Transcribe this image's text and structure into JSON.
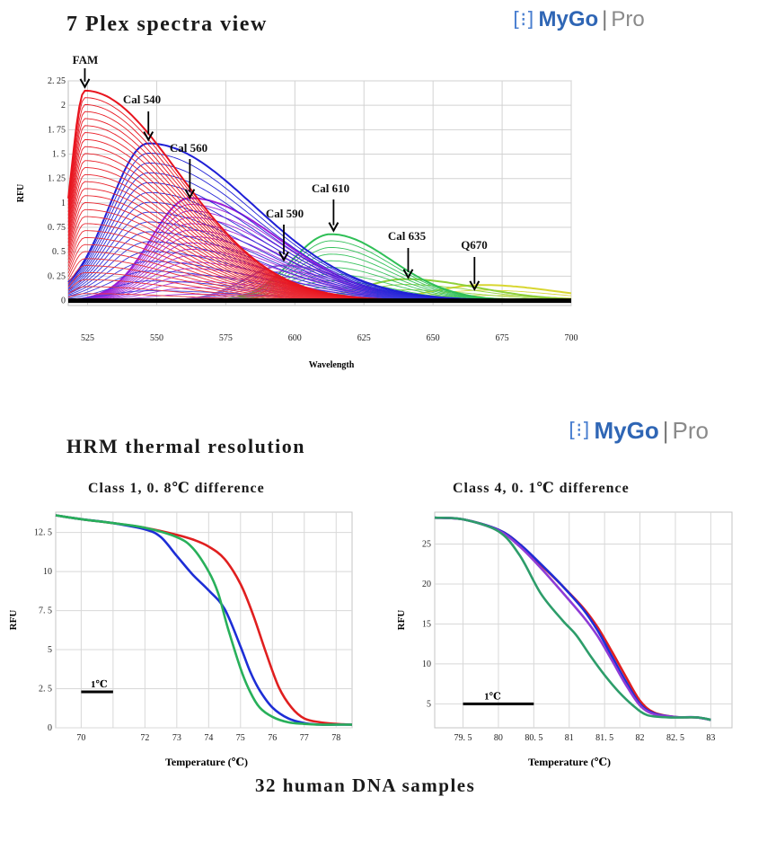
{
  "header": {
    "title": "7 Plex spectra view",
    "logo": {
      "brand": "MyGo",
      "bar": "|",
      "suffix": "Pro"
    }
  },
  "section2": {
    "title": "HRM thermal resolution",
    "logo": {
      "brand": "MyGo",
      "bar": "|",
      "suffix": "Pro"
    },
    "caption": "32 human DNA samples"
  },
  "chart_data": [
    {
      "type": "line",
      "title": "7 Plex spectra view",
      "xlabel": "Wavelength",
      "ylabel": "RFU",
      "xlim": [
        518,
        700
      ],
      "ylim": [
        -0.05,
        2.25
      ],
      "x_ticks": [
        "525",
        "550",
        "575",
        "600",
        "625",
        "650",
        "675",
        "700"
      ],
      "y_ticks": [
        "0",
        "0. 25",
        "0. 5",
        "0. 75",
        "1",
        "1. 25",
        "1. 5",
        "1. 75",
        "2",
        "2. 25"
      ],
      "grid": true,
      "series": [
        {
          "name": "FAM",
          "color": "#e8141e",
          "peak_x": 524,
          "peak_y": 2.15,
          "sigma_left": 5,
          "sigma_right": 34,
          "curves": 30
        },
        {
          "name": "Cal 540",
          "color": "#1f1fd6",
          "peak_x": 547,
          "peak_y": 1.61,
          "sigma_left": 14,
          "sigma_right": 38,
          "curves": 16
        },
        {
          "name": "Cal 560",
          "color": "#9a1ed8",
          "peak_x": 562,
          "peak_y": 1.05,
          "sigma_left": 14,
          "sigma_right": 32,
          "curves": 16
        },
        {
          "name": "Cal 590",
          "color": "#8b5fd0",
          "peak_x": 596,
          "peak_y": 0.36,
          "sigma_left": 14,
          "sigma_right": 22,
          "curves": 6
        },
        {
          "name": "Cal 610",
          "color": "#2fbf56",
          "peak_x": 613,
          "peak_y": 0.68,
          "sigma_left": 14,
          "sigma_right": 22,
          "curves": 10
        },
        {
          "name": "Cal 635",
          "color": "#8ecf38",
          "peak_x": 640,
          "peak_y": 0.22,
          "sigma_left": 16,
          "sigma_right": 26,
          "curves": 4
        },
        {
          "name": "Q670",
          "color": "#d8d630",
          "peak_x": 668,
          "peak_y": 0.16,
          "sigma_left": 18,
          "sigma_right": 26,
          "curves": 3
        }
      ],
      "annotations": [
        {
          "text": "FAM",
          "x": 524,
          "y": 2.15
        },
        {
          "text": "Cal 540",
          "x": 547,
          "y": 1.61
        },
        {
          "text": "Cal 560",
          "x": 562,
          "y": 1.02
        },
        {
          "text": "Cal 590",
          "x": 596,
          "y": 0.38
        },
        {
          "text": "Cal 610",
          "x": 614,
          "y": 0.68
        },
        {
          "text": "Cal 635",
          "x": 641,
          "y": 0.2
        },
        {
          "text": "Q670",
          "x": 665,
          "y": 0.08
        }
      ]
    },
    {
      "type": "line",
      "title": "Class 1, 0. 8℃ difference",
      "xlabel": "Temperature (℃)",
      "ylabel": "RFU",
      "xlim": [
        69.2,
        78.5
      ],
      "ylim": [
        0,
        13.8
      ],
      "x_ticks": [
        "70",
        "72",
        "73",
        "74",
        "75",
        "76",
        "77",
        "78"
      ],
      "y_ticks": [
        "0",
        "2. 5",
        "5",
        "7. 5",
        "10",
        "12. 5"
      ],
      "x_tick_values": [
        70,
        71,
        72,
        73,
        74,
        75,
        76,
        77,
        78
      ],
      "x_tick_shown": [
        "70",
        "",
        "72",
        "73",
        "74",
        "75",
        "76",
        "77",
        "78"
      ],
      "grid": true,
      "scale_bar": {
        "label": "1℃",
        "x_start": 70,
        "x_end": 71,
        "y": 2.3
      },
      "series": [
        {
          "color": "#e01f1f",
          "x": [
            69.2,
            70,
            71,
            72,
            73,
            73.5,
            74,
            74.5,
            75,
            75.4,
            75.8,
            76.2,
            76.6,
            77,
            77.5,
            78,
            78.5
          ],
          "y": [
            13.6,
            13.35,
            13.1,
            12.8,
            12.35,
            12.05,
            11.6,
            10.8,
            9.2,
            7.2,
            4.8,
            2.6,
            1.3,
            0.6,
            0.35,
            0.25,
            0.2
          ]
        },
        {
          "color": "#1d2ed6",
          "x": [
            69.2,
            70,
            71,
            72,
            72.5,
            73,
            73.5,
            74,
            74.5,
            75,
            75.3,
            75.6,
            76,
            76.5,
            77,
            77.5,
            78,
            78.5
          ],
          "y": [
            13.6,
            13.35,
            13.1,
            12.7,
            12.2,
            11.0,
            9.8,
            8.8,
            7.6,
            5.2,
            3.6,
            2.4,
            1.3,
            0.6,
            0.3,
            0.2,
            0.2,
            0.2
          ]
        },
        {
          "color": "#28b05a",
          "x": [
            69.2,
            70,
            71,
            72,
            73,
            73.5,
            74,
            74.3,
            74.6,
            75,
            75.3,
            75.6,
            76,
            76.5,
            77,
            77.5,
            78,
            78.5
          ],
          "y": [
            13.6,
            13.35,
            13.1,
            12.8,
            12.2,
            11.5,
            10.0,
            8.6,
            6.4,
            3.8,
            2.3,
            1.3,
            0.7,
            0.35,
            0.25,
            0.2,
            0.2,
            0.2
          ]
        }
      ]
    },
    {
      "type": "line",
      "title": "Class 4, 0. 1℃ difference",
      "xlabel": "Temperature (℃)",
      "ylabel": "RFU",
      "xlim": [
        79.1,
        83.3
      ],
      "ylim": [
        2,
        29
      ],
      "x_ticks": [
        "79. 5",
        "80",
        "80. 5",
        "81",
        "81. 5",
        "82",
        "82. 5",
        "83"
      ],
      "y_ticks": [
        "5",
        "10",
        "15",
        "20",
        "25"
      ],
      "grid": true,
      "scale_bar": {
        "label": "1℃",
        "x_start": 79.5,
        "x_end": 80.5,
        "y": 5
      },
      "series": [
        {
          "color": "#e01f1f",
          "x": [
            79.1,
            79.5,
            80,
            80.3,
            80.6,
            80.9,
            81.2,
            81.4,
            81.6,
            81.8,
            82,
            82.2,
            82.5,
            82.8,
            83.0
          ],
          "y": [
            28.3,
            28.1,
            26.8,
            25.0,
            22.4,
            19.8,
            17.0,
            14.6,
            11.6,
            8.4,
            5.4,
            3.9,
            3.35,
            3.3,
            3.0
          ]
        },
        {
          "color": "#1d2ed6",
          "x": [
            79.1,
            79.5,
            80,
            80.3,
            80.6,
            80.9,
            81.2,
            81.4,
            81.6,
            81.8,
            82,
            82.2,
            82.5,
            82.8,
            83.0
          ],
          "y": [
            28.3,
            28.1,
            26.8,
            25.0,
            22.5,
            19.8,
            16.8,
            14.2,
            11.0,
            7.8,
            5.0,
            3.8,
            3.35,
            3.3,
            3.0
          ]
        },
        {
          "color": "#8f3bd6",
          "x": [
            79.1,
            79.5,
            80,
            80.3,
            80.6,
            80.9,
            81.2,
            81.4,
            81.6,
            81.8,
            82,
            82.2,
            82.5,
            82.8,
            83.0
          ],
          "y": [
            28.3,
            28.1,
            26.7,
            24.7,
            22.0,
            19.0,
            15.9,
            13.5,
            10.5,
            7.4,
            4.8,
            3.7,
            3.35,
            3.3,
            3.0
          ]
        },
        {
          "color": "#2d9d6a",
          "x": [
            79.1,
            79.5,
            80,
            80.3,
            80.6,
            80.9,
            81.1,
            81.3,
            81.5,
            81.7,
            81.9,
            82.1,
            82.4,
            82.8,
            83.0
          ],
          "y": [
            28.3,
            28.1,
            26.6,
            23.6,
            18.8,
            15.5,
            13.6,
            11.0,
            8.6,
            6.5,
            4.8,
            3.6,
            3.3,
            3.3,
            3.0
          ]
        }
      ]
    }
  ]
}
